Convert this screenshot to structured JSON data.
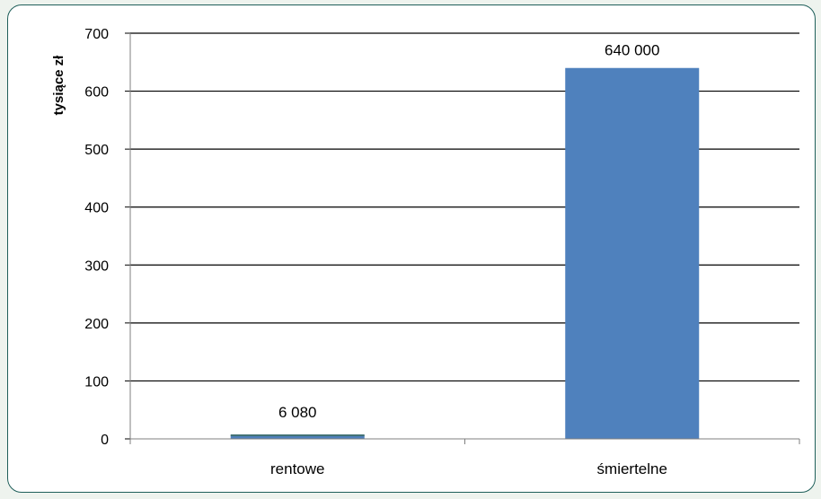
{
  "chart_data": {
    "type": "bar",
    "title": "",
    "xlabel": "",
    "ylabel": "tysiące zł",
    "ylim": [
      0,
      700
    ],
    "yticks": [
      0,
      100,
      200,
      300,
      400,
      500,
      600,
      700
    ],
    "grid": true,
    "legend": "none",
    "categories": [
      "rentowe",
      "śmiertelne"
    ],
    "values": [
      6.08,
      640
    ],
    "data_labels": [
      "6 080",
      "640 000"
    ],
    "bar_color": "#4f81bd"
  }
}
